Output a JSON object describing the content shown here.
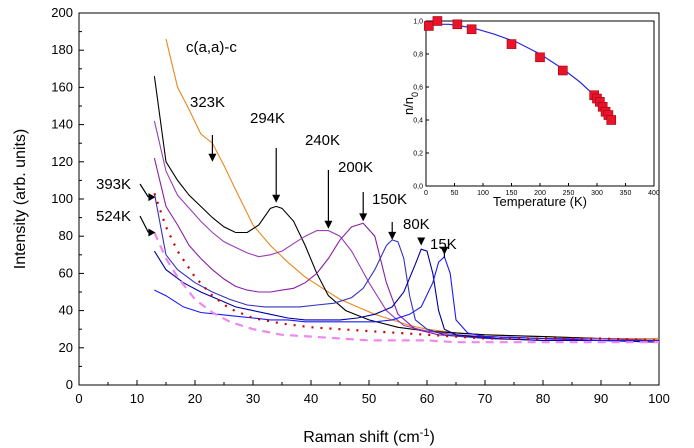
{
  "chart_data": [
    {
      "type": "line",
      "xlabel": "Raman shift (cm",
      "xlabel_sup": "-1",
      "xlabel_end": ")",
      "ylabel": "Intensity (arb. units)",
      "xlim": [
        0,
        100
      ],
      "ylim": [
        0,
        200
      ],
      "xticks": [
        "0",
        "10",
        "20",
        "30",
        "40",
        "50",
        "60",
        "70",
        "80",
        "90",
        "100"
      ],
      "yticks": [
        "0",
        "20",
        "40",
        "60",
        "80",
        "100",
        "120",
        "140",
        "160",
        "180",
        "200"
      ],
      "grid": false,
      "geometry_label": "c(a,a)-c",
      "annotations": [
        {
          "text": "323K",
          "arrow_x": 23,
          "arrow_y": 120
        },
        {
          "text": "294K",
          "arrow_x": 34,
          "arrow_y": 98
        },
        {
          "text": "240K",
          "arrow_x": 43,
          "arrow_y": 84
        },
        {
          "text": "200K",
          "arrow_x": 49,
          "arrow_y": 88
        },
        {
          "text": "150K",
          "arrow_x": 54,
          "arrow_y": 78
        },
        {
          "text": "80K",
          "arrow_x": 59,
          "arrow_y": 75
        },
        {
          "text": "15K",
          "arrow_x": 63,
          "arrow_y": 70
        },
        {
          "text": "393K",
          "arrow_x": 13,
          "arrow_y": 101
        },
        {
          "text": "524K",
          "arrow_x": 13,
          "arrow_y": 82
        }
      ],
      "series": [
        {
          "temperature": "323K",
          "color": "#e8891a",
          "style": "solid",
          "x": [
            15,
            17,
            19,
            21,
            23,
            25,
            27,
            30,
            33,
            36,
            39,
            42,
            45,
            48,
            51,
            54,
            57,
            60,
            65,
            70,
            80,
            90,
            100
          ],
          "y": [
            186,
            160,
            148,
            135,
            130,
            118,
            105,
            86,
            75,
            66,
            58,
            52,
            46,
            42,
            38,
            35,
            32,
            30,
            28,
            27,
            26,
            25,
            25
          ]
        },
        {
          "temperature": "294K",
          "color": "#000000",
          "style": "solid",
          "x": [
            13,
            15,
            17,
            19,
            21,
            23,
            25,
            27,
            29,
            31,
            33,
            34,
            35,
            37,
            39,
            41,
            43,
            46,
            50,
            55,
            60,
            65,
            70,
            80,
            90,
            100
          ],
          "y": [
            166,
            120,
            110,
            102,
            96,
            90,
            85,
            82,
            82,
            86,
            95,
            96,
            95,
            88,
            75,
            60,
            48,
            40,
            35,
            31,
            29,
            28,
            27,
            26,
            25,
            24
          ]
        },
        {
          "temperature": "240K",
          "color": "#9a3fb5",
          "style": "solid",
          "x": [
            13,
            15,
            17,
            19,
            21,
            23,
            25,
            27,
            29,
            31,
            33,
            35,
            37,
            39,
            41,
            43,
            45,
            47,
            50,
            53,
            56,
            60,
            65,
            70,
            80,
            90,
            100
          ],
          "y": [
            142,
            115,
            102,
            95,
            88,
            82,
            77,
            74,
            71,
            69,
            70,
            72,
            76,
            80,
            83,
            83,
            80,
            72,
            55,
            40,
            32,
            29,
            27,
            26,
            25,
            25,
            24
          ]
        },
        {
          "temperature": "200K",
          "color": "#8a1fa8",
          "style": "solid",
          "x": [
            13,
            15,
            17,
            19,
            21,
            23,
            25,
            27,
            29,
            31,
            33,
            35,
            37,
            39,
            41,
            43,
            45,
            47,
            49,
            51,
            53,
            55,
            58,
            62,
            66,
            70,
            80,
            90,
            100
          ],
          "y": [
            122,
            96,
            86,
            75,
            68,
            62,
            57,
            53,
            51,
            50,
            50,
            51,
            52,
            55,
            60,
            68,
            78,
            85,
            87,
            80,
            55,
            38,
            30,
            27,
            26,
            26,
            25,
            24,
            24
          ]
        },
        {
          "temperature": "150K",
          "color": "#3333bb",
          "style": "solid",
          "x": [
            13,
            15,
            17,
            20,
            23,
            26,
            29,
            32,
            35,
            38,
            41,
            44,
            47,
            49,
            51,
            53,
            54,
            55,
            56,
            57,
            58,
            60,
            63,
            66,
            70,
            80,
            90,
            100
          ],
          "y": [
            103,
            70,
            62,
            55,
            50,
            46,
            43,
            42,
            42,
            42,
            43,
            44,
            47,
            52,
            62,
            75,
            78,
            77,
            68,
            48,
            35,
            30,
            27,
            26,
            25,
            24,
            24,
            23
          ]
        },
        {
          "temperature": "80K",
          "color": "#0000a0",
          "style": "solid",
          "x": [
            13,
            15,
            18,
            21,
            24,
            27,
            30,
            33,
            36,
            39,
            42,
            45,
            48,
            51,
            54,
            56,
            58,
            59,
            60,
            61,
            62,
            63,
            65,
            68,
            72,
            80,
            90,
            100
          ],
          "y": [
            72,
            62,
            55,
            50,
            46,
            42,
            40,
            38,
            36,
            35,
            35,
            35,
            36,
            38,
            42,
            50,
            65,
            73,
            72,
            60,
            40,
            30,
            27,
            26,
            25,
            24,
            24,
            23
          ]
        },
        {
          "temperature": "15K",
          "color": "#1a1aff",
          "style": "solid",
          "x": [
            13,
            15,
            18,
            21,
            24,
            27,
            30,
            33,
            36,
            39,
            42,
            45,
            48,
            51,
            54,
            57,
            59,
            61,
            62,
            63,
            64,
            65,
            67,
            70,
            80,
            90,
            100
          ],
          "y": [
            51,
            48,
            42,
            39,
            38,
            37,
            36,
            35,
            35,
            34,
            34,
            34,
            34,
            34,
            35,
            38,
            42,
            55,
            66,
            69,
            60,
            35,
            28,
            26,
            25,
            24,
            24
          ]
        },
        {
          "temperature": "393K",
          "color": "#cc0000",
          "style": "dotted",
          "x": [
            13,
            15,
            17,
            20,
            23,
            26,
            30,
            35,
            40,
            45,
            50,
            55,
            60,
            65,
            70,
            80,
            90,
            100
          ],
          "y": [
            103,
            85,
            72,
            58,
            48,
            41,
            36,
            33,
            31,
            30,
            29,
            28,
            27,
            26,
            25,
            25,
            25,
            24
          ]
        },
        {
          "temperature": "524K",
          "color": "#ee88ee",
          "style": "dashed",
          "x": [
            13,
            15,
            17,
            20,
            23,
            26,
            30,
            35,
            40,
            45,
            50,
            55,
            60,
            65,
            70,
            80,
            90,
            100
          ],
          "y": [
            82,
            68,
            58,
            46,
            39,
            34,
            30,
            27,
            26,
            25,
            24,
            24,
            24,
            23,
            23,
            23,
            23,
            23
          ]
        }
      ]
    },
    {
      "type": "scatter",
      "xlabel": "Temperature (K)",
      "ylabel": "n/n",
      "ylabel_sub": "0",
      "xlim": [
        0,
        400
      ],
      "ylim": [
        0,
        1.0
      ],
      "xticks": [
        "0",
        "50",
        "100",
        "150",
        "200",
        "250",
        "300",
        "350",
        "400"
      ],
      "yticks": [
        "0,0",
        "0,2",
        "0,4",
        "0,6",
        "0,8",
        "1,0"
      ],
      "marker_color": "#e8142a",
      "fit_color": "#2a2ad8",
      "points": {
        "x": [
          5,
          20,
          55,
          80,
          150,
          200,
          240,
          295,
          300,
          305,
          310,
          315,
          320,
          325
        ],
        "y": [
          0.97,
          1.0,
          0.98,
          0.95,
          0.86,
          0.78,
          0.7,
          0.55,
          0.53,
          0.51,
          0.48,
          0.45,
          0.43,
          0.4
        ]
      },
      "fit": {
        "x": [
          0,
          40,
          80,
          120,
          160,
          200,
          240,
          270,
          295,
          315,
          330
        ],
        "y": [
          0.98,
          0.98,
          0.96,
          0.92,
          0.87,
          0.8,
          0.71,
          0.63,
          0.55,
          0.46,
          0.38
        ]
      }
    }
  ]
}
